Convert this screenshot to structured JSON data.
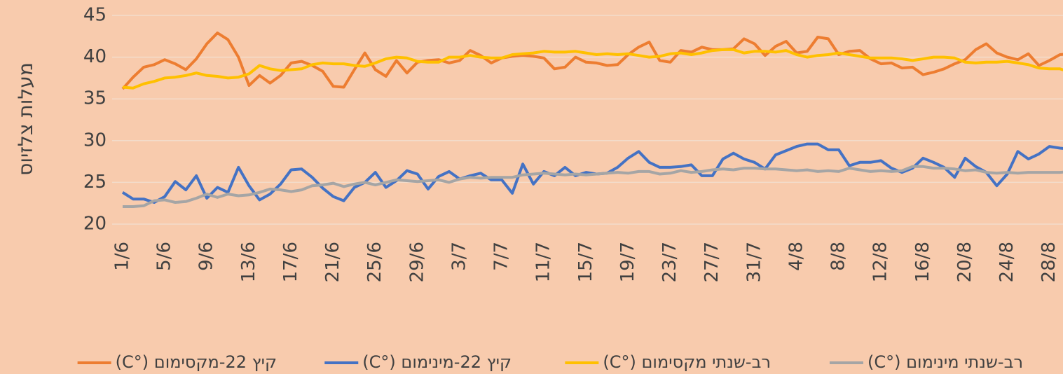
{
  "chart_data": {
    "type": "line",
    "y_label": "מעלות צלזיוס",
    "categories": [
      "1/6",
      null,
      null,
      null,
      "5/6",
      null,
      null,
      null,
      "9/6",
      null,
      null,
      null,
      "13/6",
      null,
      null,
      null,
      "17/6",
      null,
      null,
      null,
      "21/6",
      null,
      null,
      null,
      "25/6",
      null,
      null,
      null,
      "29/6",
      null,
      null,
      null,
      "3/7",
      null,
      null,
      null,
      "7/7",
      null,
      null,
      null,
      "11/7",
      null,
      null,
      null,
      "15/7",
      null,
      null,
      null,
      "19/7",
      null,
      null,
      null,
      "23/7",
      null,
      null,
      null,
      "27/7",
      null,
      null,
      null,
      "31/7",
      null,
      null,
      null,
      "4/8",
      null,
      null,
      null,
      "8/8",
      null,
      null,
      null,
      "12/8",
      null,
      null,
      null,
      "16/8",
      null,
      null,
      null,
      "20/8",
      null,
      null,
      null,
      "24/8",
      null,
      null,
      null,
      "28/8",
      null,
      null
    ],
    "series": [
      {
        "name": "קיץ 22-מקסימום (°C)",
        "color": "#ed7d31",
        "values": [
          36.2,
          37.6,
          38.8,
          39.1,
          39.7,
          39.2,
          38.5,
          39.8,
          41.6,
          42.9,
          42.1,
          40.0,
          36.6,
          37.8,
          36.9,
          37.8,
          39.3,
          39.5,
          39.0,
          38.3,
          36.5,
          36.4,
          38.5,
          40.5,
          38.5,
          37.7,
          39.6,
          38.1,
          39.4,
          39.6,
          39.7,
          39.3,
          39.6,
          40.8,
          40.2,
          39.3,
          39.9,
          40.1,
          40.2,
          40.1,
          39.9,
          38.6,
          38.8,
          40.0,
          39.4,
          39.3,
          39.0,
          39.1,
          40.3,
          41.2,
          41.8,
          39.6,
          39.4,
          40.8,
          40.6,
          41.2,
          40.9,
          40.9,
          41.0,
          42.2,
          41.6,
          40.2,
          41.3,
          41.9,
          40.5,
          40.7,
          42.4,
          42.2,
          40.3,
          40.7,
          40.8,
          39.8,
          39.2,
          39.3,
          38.7,
          38.8,
          37.9,
          38.2,
          38.6,
          39.2,
          39.7,
          40.9,
          41.6,
          40.5,
          40.0,
          39.7,
          40.4,
          39.0,
          39.6,
          40.3,
          40.4
        ]
      },
      {
        "name": "קיץ 22-מינימום (°C)",
        "color": "#4472c4",
        "values": [
          23.8,
          23.0,
          23.0,
          22.6,
          23.3,
          25.1,
          24.1,
          25.8,
          23.1,
          24.4,
          23.8,
          26.8,
          24.6,
          22.9,
          23.6,
          24.8,
          26.5,
          26.6,
          25.6,
          24.3,
          23.3,
          22.8,
          24.4,
          25.0,
          26.2,
          24.4,
          25.2,
          26.4,
          26.0,
          24.2,
          25.7,
          26.3,
          25.4,
          25.8,
          26.1,
          25.3,
          25.3,
          23.7,
          27.2,
          24.8,
          26.3,
          25.8,
          26.8,
          25.8,
          26.2,
          26.0,
          26.1,
          26.8,
          27.9,
          28.7,
          27.4,
          26.8,
          26.8,
          26.9,
          27.1,
          25.8,
          25.8,
          27.8,
          28.5,
          27.8,
          27.4,
          26.6,
          28.3,
          28.8,
          29.3,
          29.6,
          29.6,
          28.9,
          28.9,
          27.0,
          27.4,
          27.4,
          27.6,
          26.7,
          26.2,
          26.7,
          27.9,
          27.4,
          26.8,
          25.6,
          27.9,
          26.9,
          26.2,
          24.6,
          26.0,
          28.7,
          27.8,
          28.4,
          29.3,
          29.1,
          29.0
        ]
      },
      {
        "name": "רב-שנתי מקסימום (°C)",
        "color": "#ffc000",
        "values": [
          36.4,
          36.3,
          36.8,
          37.1,
          37.5,
          37.6,
          37.8,
          38.1,
          37.8,
          37.7,
          37.5,
          37.6,
          38.0,
          39.0,
          38.6,
          38.4,
          38.5,
          38.6,
          39.1,
          39.3,
          39.2,
          39.2,
          39.0,
          38.9,
          39.3,
          39.8,
          40.0,
          39.9,
          39.5,
          39.4,
          39.4,
          40.0,
          40.0,
          40.2,
          40.0,
          39.9,
          39.9,
          40.3,
          40.4,
          40.5,
          40.7,
          40.6,
          40.6,
          40.7,
          40.5,
          40.3,
          40.4,
          40.3,
          40.4,
          40.2,
          40.0,
          40.1,
          40.4,
          40.5,
          40.3,
          40.5,
          40.8,
          40.9,
          40.9,
          40.5,
          40.7,
          40.7,
          40.6,
          40.8,
          40.3,
          40.0,
          40.2,
          40.3,
          40.5,
          40.3,
          40.1,
          39.9,
          39.9,
          39.9,
          39.8,
          39.6,
          39.8,
          40.0,
          40.0,
          39.9,
          39.4,
          39.3,
          39.4,
          39.4,
          39.5,
          39.3,
          39.1,
          38.7,
          38.6,
          38.6,
          38.2
        ]
      },
      {
        "name": "רב-שנתי מינימום (°C)",
        "color": "#a5a5a5",
        "values": [
          22.1,
          22.1,
          22.2,
          22.8,
          22.9,
          22.6,
          22.7,
          23.1,
          23.6,
          23.2,
          23.6,
          23.4,
          23.5,
          23.8,
          24.2,
          24.1,
          23.9,
          24.1,
          24.6,
          24.7,
          24.9,
          24.5,
          24.8,
          25.0,
          24.7,
          25.0,
          25.3,
          25.2,
          25.1,
          25.2,
          25.3,
          25.0,
          25.4,
          25.6,
          25.5,
          25.6,
          25.6,
          25.6,
          25.9,
          26.0,
          26.1,
          26.0,
          25.9,
          26.0,
          25.9,
          26.0,
          26.1,
          26.2,
          26.1,
          26.3,
          26.3,
          26.0,
          26.1,
          26.4,
          26.2,
          26.3,
          26.5,
          26.6,
          26.5,
          26.7,
          26.7,
          26.6,
          26.6,
          26.5,
          26.4,
          26.5,
          26.3,
          26.4,
          26.3,
          26.7,
          26.5,
          26.3,
          26.4,
          26.3,
          26.4,
          26.9,
          26.9,
          26.7,
          26.7,
          26.6,
          26.4,
          26.5,
          26.2,
          26.1,
          26.2,
          26.1,
          26.2,
          26.2,
          26.2,
          26.2,
          26.3
        ]
      }
    ],
    "ylim": [
      20,
      45
    ],
    "yticks": [
      20,
      25,
      30,
      35,
      40,
      45
    ],
    "grid": true,
    "legend": "bottom"
  }
}
